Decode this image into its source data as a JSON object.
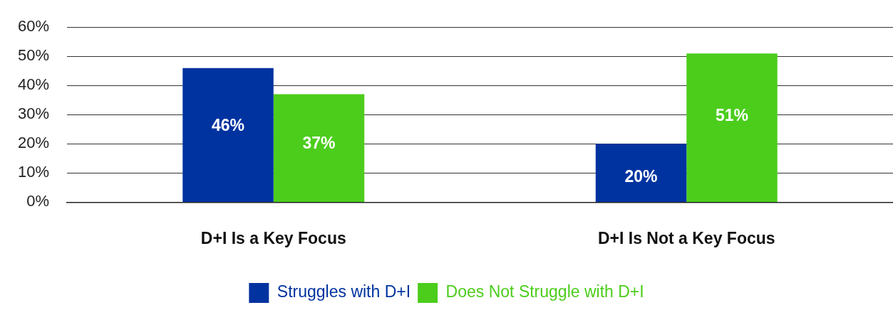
{
  "chart_data": {
    "type": "bar",
    "categories": [
      "D+I Is a Key Focus",
      "D+I Is Not a Key Focus"
    ],
    "series": [
      {
        "name": "Struggles with D+I",
        "color": "#0033a0",
        "values": [
          46,
          20
        ],
        "value_labels": [
          "46%",
          "20%"
        ]
      },
      {
        "name": "Does Not Struggle with D+I",
        "color": "#4ccd1c",
        "values": [
          37,
          51
        ],
        "value_labels": [
          "37%",
          "51%"
        ]
      }
    ],
    "ylim": [
      0,
      60
    ],
    "yticks": [
      {
        "value": 0,
        "label": "0%"
      },
      {
        "value": 10,
        "label": "10%"
      },
      {
        "value": 20,
        "label": "20%"
      },
      {
        "value": 30,
        "label": "30%"
      },
      {
        "value": 40,
        "label": "40%"
      },
      {
        "value": 50,
        "label": "50%"
      },
      {
        "value": 60,
        "label": "60%"
      }
    ],
    "grid": "y",
    "legend": "bottom"
  }
}
